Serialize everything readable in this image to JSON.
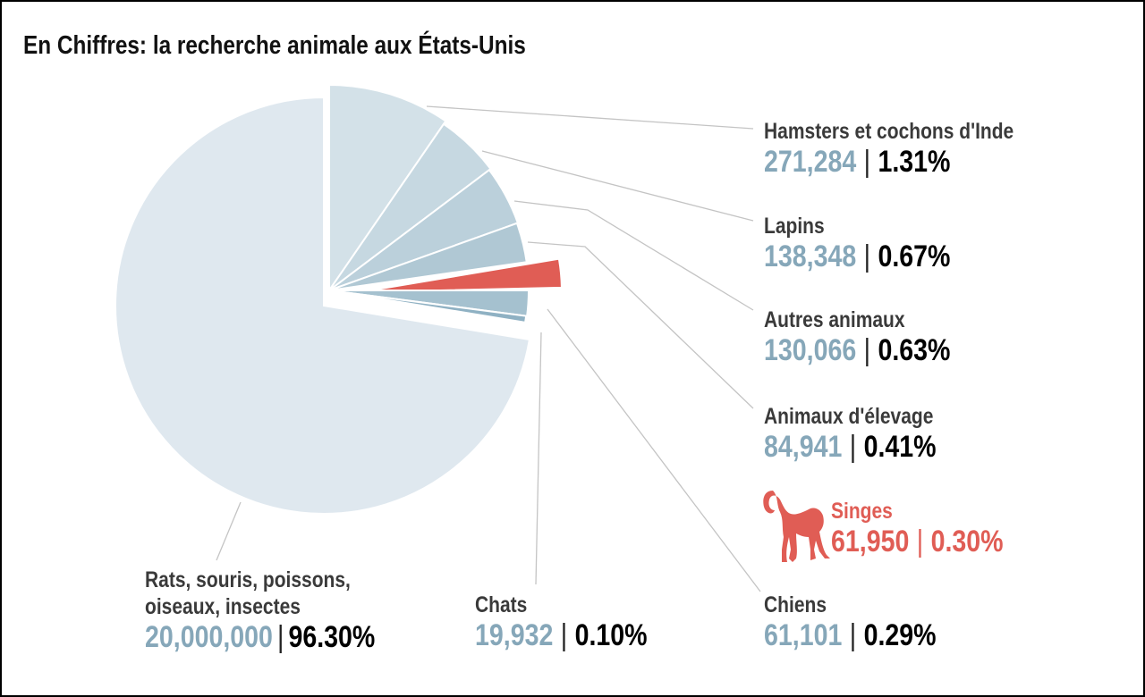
{
  "chart_data": {
    "type": "pie",
    "title": "En Chiffres: la recherche animale aux États-Unis",
    "slices": [
      {
        "label": "Rats, souris, poissons, oiseaux, insectes",
        "value": 20000000,
        "value_text": "20,000,000",
        "percent": "96.30%",
        "color": "#dfe8ef"
      },
      {
        "label": "Hamsters et cochons d'Inde",
        "value": 271284,
        "value_text": "271,284",
        "percent": "1.31%",
        "color": "#d3e1e8"
      },
      {
        "label": "Lapins",
        "value": 138348,
        "value_text": "138,348",
        "percent": "0.67%",
        "color": "#c6d8e1"
      },
      {
        "label": "Autres animaux",
        "value": 130066,
        "value_text": "130,066",
        "percent": "0.63%",
        "color": "#bbd0db"
      },
      {
        "label": "Animaux d'élevage",
        "value": 84941,
        "value_text": "84,941",
        "percent": "0.41%",
        "color": "#b0c8d4"
      },
      {
        "label": "Singes",
        "value": 61950,
        "value_text": "61,950",
        "percent": "0.30%",
        "color": "#e05d55",
        "highlighted": true,
        "icon": "monkey-icon"
      },
      {
        "label": "Chiens",
        "value": 61101,
        "value_text": "61,101",
        "percent": "0.29%",
        "color": "#a5c1cf"
      },
      {
        "label": "Chats",
        "value": 19932,
        "value_text": "19,932",
        "percent": "0.10%",
        "color": "#8fb1c3"
      }
    ],
    "separator": "|"
  }
}
